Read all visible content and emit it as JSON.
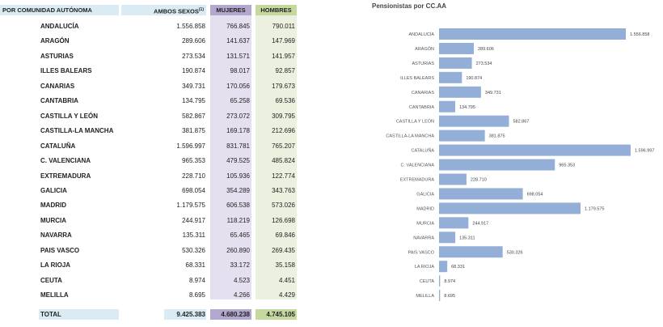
{
  "table": {
    "headers": {
      "region": "POR COMUNIDAD AUTÓNOMA",
      "both": "AMBOS SEXOS",
      "both_note": "(1)",
      "women": "MUJERES",
      "men": "HOMBRES"
    },
    "rows": [
      {
        "region": "ANDALUCÍA",
        "both": "1.556.858",
        "women": "766.845",
        "men": "790.011"
      },
      {
        "region": "ARAGÓN",
        "both": "289.606",
        "women": "141.637",
        "men": "147.969"
      },
      {
        "region": "ASTURIAS",
        "both": "273.534",
        "women": "131.571",
        "men": "141.957"
      },
      {
        "region": "ILLES BALEARS",
        "both": "190.874",
        "women": "98.017",
        "men": "92.857"
      },
      {
        "region": "CANARIAS",
        "both": "349.731",
        "women": "170.056",
        "men": "179.673"
      },
      {
        "region": "CANTABRIA",
        "both": "134.795",
        "women": "65.258",
        "men": "69.536"
      },
      {
        "region": "CASTILLA Y LEÓN",
        "both": "582.867",
        "women": "273.072",
        "men": "309.795"
      },
      {
        "region": "CASTILLA-LA MANCHA",
        "both": "381.875",
        "women": "169.178",
        "men": "212.696"
      },
      {
        "region": "CATALUÑA",
        "both": "1.596.997",
        "women": "831.781",
        "men": "765.207"
      },
      {
        "region": "C. VALENCIANA",
        "both": "965.353",
        "women": "479.525",
        "men": "485.824"
      },
      {
        "region": "EXTREMADURA",
        "both": "228.710",
        "women": "105.936",
        "men": "122.774"
      },
      {
        "region": "GALICIA",
        "both": "698.054",
        "women": "354.289",
        "men": "343.763"
      },
      {
        "region": "MADRID",
        "both": "1.179.575",
        "women": "606.538",
        "men": "573.026"
      },
      {
        "region": "MURCIA",
        "both": "244.917",
        "women": "118.219",
        "men": "126.698"
      },
      {
        "region": "NAVARRA",
        "both": "135.311",
        "women": "65.465",
        "men": "69.846"
      },
      {
        "region": "PAIS VASCO",
        "both": "530.326",
        "women": "260.890",
        "men": "269.435"
      },
      {
        "region": "LA RIOJA",
        "both": "68.331",
        "women": "33.172",
        "men": "35.158"
      },
      {
        "region": "CEUTA",
        "both": "8.974",
        "women": "4.523",
        "men": "4.451"
      },
      {
        "region": "MELILLA",
        "both": "8.695",
        "women": "4.266",
        "men": "4.429"
      }
    ],
    "total": {
      "label": "TOTAL",
      "both": "9.425.383",
      "women": "4.680.238",
      "men": "4.745.105"
    },
    "colors": {
      "header_blue": "#daebf3",
      "women_header": "#b3a6cf",
      "women_body": "#e5e0f0",
      "men_header": "#c5d99f",
      "men_body": "#ebf1de"
    }
  },
  "chart_data": {
    "type": "bar",
    "orientation": "horizontal",
    "title": "Pensionistas por CC.AA",
    "categories": [
      "ANDALUCÍA",
      "ARAGÓN",
      "ASTURIAS",
      "ILLES BALEARS",
      "CANARIAS",
      "CANTABRIA",
      "CASTILLA Y LEÓN",
      "CASTILLA-LA MANCHA",
      "CATALUÑA",
      "C. VALENCIANA",
      "EXTREMADURA",
      "GALICIA",
      "MADRID",
      "MURCIA",
      "NAVARRA",
      "PAIS VASCO",
      "LA RIOJA",
      "CEUTA",
      "MELILLA"
    ],
    "values": [
      1556858,
      289606,
      273534,
      190874,
      349731,
      134795,
      582867,
      381875,
      1596997,
      965353,
      228710,
      698054,
      1179575,
      244917,
      135311,
      530326,
      68331,
      8974,
      8695
    ],
    "data_labels": [
      "1.556.858",
      "289.606",
      "273.534",
      "190.874",
      "349.731",
      "134.795",
      "582.867",
      "381.875",
      "1.596.997",
      "965.353",
      "228.710",
      "698.054",
      "1.179.575",
      "244.917",
      "135.311",
      "530.326",
      "68.331",
      "8.974",
      "8.695"
    ],
    "bar_color": "#93afd8",
    "grid": false,
    "legend": "none"
  }
}
